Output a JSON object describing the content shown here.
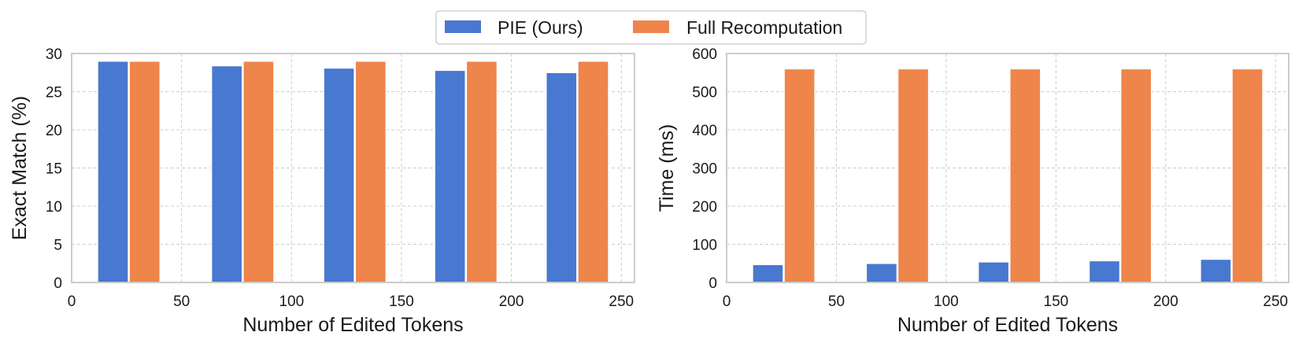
{
  "legend": {
    "items": [
      {
        "label": "PIE (Ours)",
        "color": "#4878d0"
      },
      {
        "label": "Full Recomputation",
        "color": "#ee854a"
      }
    ]
  },
  "chart_data": [
    {
      "type": "bar",
      "xlabel": "Number of Edited Tokens",
      "ylabel": "Exact Match (%)",
      "xlim": [
        0,
        256
      ],
      "ylim": [
        0,
        30
      ],
      "xticks": [
        0,
        50,
        100,
        150,
        200,
        250
      ],
      "yticks": [
        0,
        5,
        10,
        15,
        20,
        25,
        30
      ],
      "grid": true,
      "bar_width": 14,
      "series": [
        {
          "name": "PIE (Ours)",
          "color": "#4878d0",
          "x": [
            18.8,
            70.6,
            121.6,
            172.1,
            222.8
          ],
          "values": [
            29.0,
            28.4,
            28.1,
            27.8,
            27.5
          ]
        },
        {
          "name": "Full Recomputation",
          "color": "#ee854a",
          "x": [
            33.2,
            85.0,
            136.0,
            186.5,
            237.2
          ],
          "values": [
            29.0,
            29.0,
            29.0,
            29.0,
            29.0
          ]
        }
      ]
    },
    {
      "type": "bar",
      "xlabel": "Number of Edited Tokens",
      "ylabel": "Time (ms)",
      "xlim": [
        0,
        256
      ],
      "ylim": [
        0,
        600
      ],
      "xticks": [
        0,
        50,
        100,
        150,
        200,
        250
      ],
      "yticks": [
        0,
        100,
        200,
        300,
        400,
        500,
        600
      ],
      "grid": true,
      "bar_width": 14,
      "series": [
        {
          "name": "PIE (Ours)",
          "color": "#4878d0",
          "x": [
            18.8,
            70.6,
            121.6,
            172.1,
            222.8
          ],
          "values": [
            47,
            50,
            54,
            57,
            61
          ]
        },
        {
          "name": "Full Recomputation",
          "color": "#ee854a",
          "x": [
            33.2,
            85.0,
            136.0,
            186.5,
            237.2
          ],
          "values": [
            560,
            560,
            560,
            560,
            560
          ]
        }
      ]
    }
  ]
}
